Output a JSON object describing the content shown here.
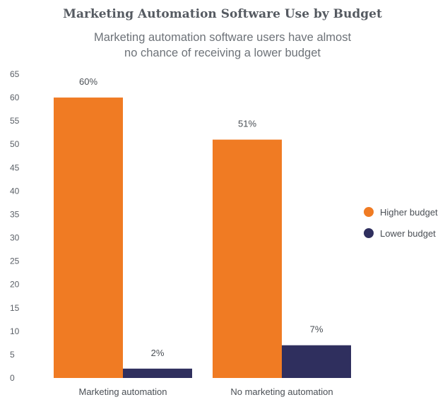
{
  "chart_data": {
    "type": "bar",
    "title": "Marketing Automation Software Use by Budget",
    "subtitle": [
      "Marketing automation software users have almost",
      "no chance of receiving a lower budget"
    ],
    "categories": [
      "Marketing automation",
      "No marketing automation"
    ],
    "series": [
      {
        "name": "Higher budget",
        "values": [
          60,
          51
        ],
        "labels": [
          "60%",
          "51%"
        ],
        "color": "#f07b23"
      },
      {
        "name": "Lower budget",
        "values": [
          2,
          7
        ],
        "labels": [
          "2%",
          "7%"
        ],
        "color": "#2f2f5e"
      }
    ],
    "ylim": [
      0,
      65
    ],
    "yticks": [
      0,
      5,
      10,
      15,
      20,
      25,
      30,
      35,
      40,
      45,
      50,
      55,
      60,
      65
    ],
    "xlabel": "",
    "ylabel": "",
    "grid": false,
    "legend_position": "right"
  }
}
